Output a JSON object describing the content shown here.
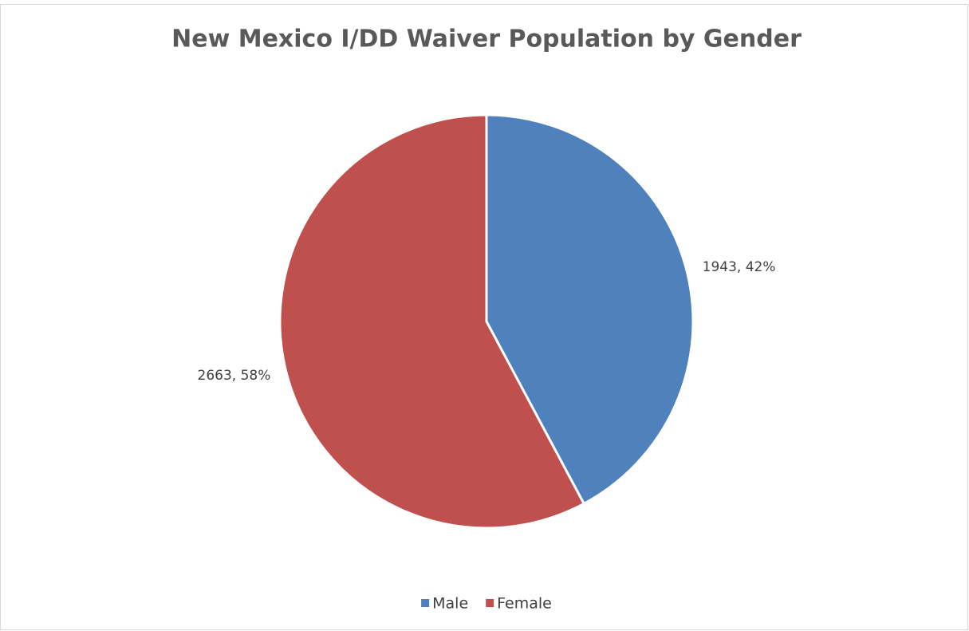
{
  "chart_data": {
    "type": "pie",
    "title": "New Mexico I/DD Waiver Population by Gender",
    "categories": [
      "Male",
      "Female"
    ],
    "values": [
      1943,
      2663
    ],
    "value_labels": [
      "1943, 42%",
      "2663, 58%"
    ],
    "colors": [
      "#4f81bd",
      "#c0504d"
    ],
    "legend": "bottom"
  }
}
